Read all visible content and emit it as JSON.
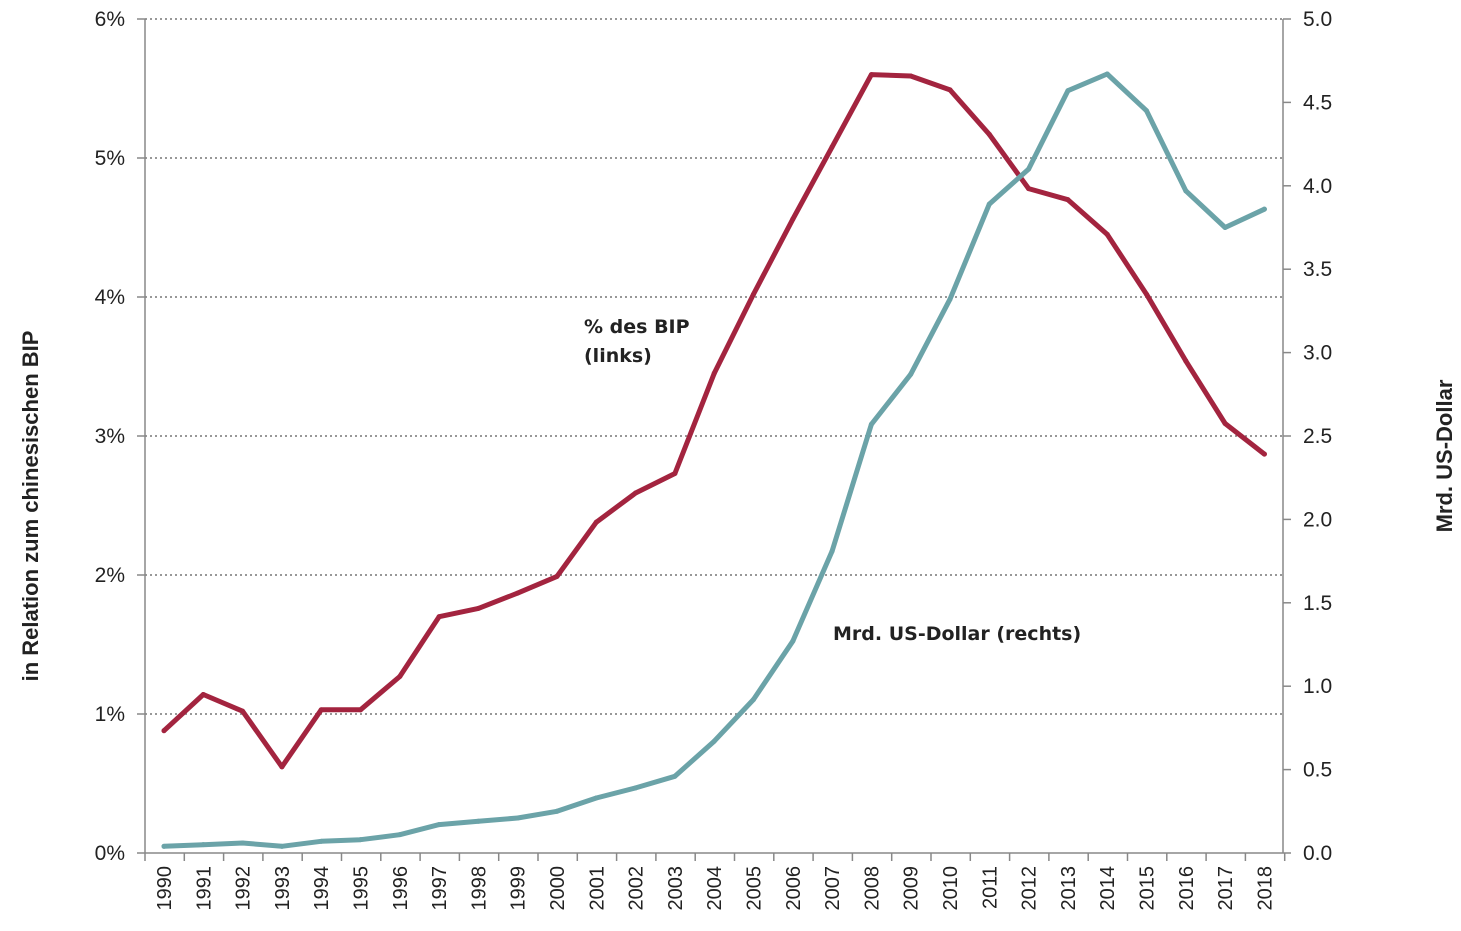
{
  "chart_data": {
    "type": "line",
    "title": "",
    "ylabel_left": "in Relation zum chinesischen BIP",
    "ylabel_right": "Mrd. US-Dollar",
    "xlabel": "",
    "x": [
      "1990",
      "1991",
      "1992",
      "1993",
      "1994",
      "1995",
      "1996",
      "1997",
      "1998",
      "1999",
      "2000",
      "2001",
      "2002",
      "2003",
      "2004",
      "2005",
      "2006",
      "2007",
      "2008",
      "2009",
      "2010",
      "2011",
      "2012",
      "2013",
      "2014",
      "2015",
      "2016",
      "2017",
      "2018"
    ],
    "y_left_ticks": [
      "0%",
      "1%",
      "2%",
      "3%",
      "4%",
      "5%",
      "6%"
    ],
    "y_left_lim": [
      0,
      6
    ],
    "y_right_ticks": [
      "0.0",
      "0.5",
      "1.0",
      "1.5",
      "2.0",
      "2.5",
      "3.0",
      "3.5",
      "4.0",
      "4.5",
      "5.0"
    ],
    "y_right_lim": [
      0,
      5
    ],
    "grid": "horizontal dotted",
    "series": [
      {
        "name": "% des BIP (links)",
        "label_lines": [
          "% des BIP",
          "(links)"
        ],
        "axis": "left",
        "color": "#a3243f",
        "values": [
          0.88,
          1.14,
          1.02,
          0.62,
          1.03,
          1.03,
          1.27,
          1.7,
          1.76,
          1.87,
          1.99,
          2.38,
          2.59,
          2.73,
          3.45,
          4.02,
          4.56,
          5.08,
          5.6,
          5.59,
          5.49,
          5.17,
          4.78,
          4.7,
          4.45,
          4.02,
          3.54,
          3.09,
          2.87
        ]
      },
      {
        "name": "Mrd. US-Dollar (rechts)",
        "label_lines": [
          "Mrd. US-Dollar (rechts)"
        ],
        "axis": "right",
        "color": "#6ba3a8",
        "values": [
          0.04,
          0.05,
          0.06,
          0.04,
          0.07,
          0.08,
          0.11,
          0.17,
          0.19,
          0.21,
          0.25,
          0.33,
          0.39,
          0.46,
          0.67,
          0.92,
          1.27,
          1.81,
          2.57,
          2.87,
          3.32,
          3.89,
          4.1,
          4.57,
          4.67,
          4.45,
          3.97,
          3.75,
          3.86
        ]
      }
    ]
  }
}
